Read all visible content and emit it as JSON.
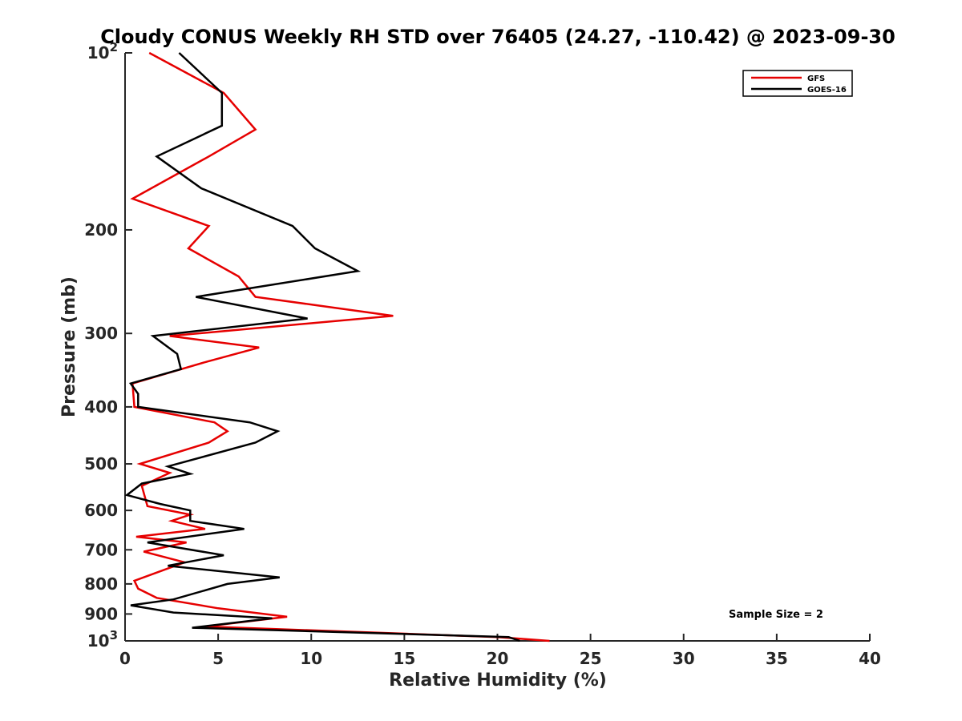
{
  "chart_data": {
    "type": "line",
    "title": "Cloudy CONUS Weekly RH STD over 76405 (24.27, -110.42) @ 2023-09-30",
    "xlabel": "Relative Humidity (%)",
    "ylabel": "Pressure (mb)",
    "xlim": [
      0,
      40
    ],
    "ylim": [
      100,
      1000
    ],
    "yscale": "log",
    "y_reversed": true,
    "x_ticks": [
      0,
      5,
      10,
      15,
      20,
      25,
      30,
      35,
      40
    ],
    "x_tick_labels": [
      "0",
      "5",
      "10",
      "15",
      "20",
      "25",
      "30",
      "35",
      "40"
    ],
    "y_ticks": [
      100,
      200,
      300,
      400,
      500,
      600,
      700,
      800,
      900,
      1000
    ],
    "y_tick_labels": [
      {
        "base": "10",
        "exp": "2"
      },
      {
        "base": "200",
        "exp": ""
      },
      {
        "base": "300",
        "exp": ""
      },
      {
        "base": "400",
        "exp": ""
      },
      {
        "base": "500",
        "exp": ""
      },
      {
        "base": "600",
        "exp": ""
      },
      {
        "base": "700",
        "exp": ""
      },
      {
        "base": "800",
        "exp": ""
      },
      {
        "base": "900",
        "exp": ""
      },
      {
        "base": "10",
        "exp": "3"
      }
    ],
    "legend_position": "top-right",
    "grid": false,
    "annotation": "Sample Size = 2",
    "series": [
      {
        "name": "GFS",
        "color": "#e60000",
        "points": [
          [
            1.3,
            100
          ],
          [
            5.3,
            117
          ],
          [
            7.0,
            135
          ],
          [
            4.5,
            150
          ],
          [
            0.4,
            177
          ],
          [
            4.5,
            197
          ],
          [
            3.4,
            215
          ],
          [
            6.1,
            240
          ],
          [
            7.0,
            260
          ],
          [
            14.4,
            280
          ],
          [
            2.4,
            303
          ],
          [
            7.2,
            317
          ],
          [
            4.4,
            335
          ],
          [
            0.4,
            365
          ],
          [
            0.5,
            400
          ],
          [
            4.8,
            425
          ],
          [
            5.5,
            440
          ],
          [
            4.5,
            460
          ],
          [
            0.8,
            500
          ],
          [
            2.4,
            518
          ],
          [
            0.9,
            545
          ],
          [
            1.2,
            590
          ],
          [
            3.5,
            610
          ],
          [
            2.5,
            625
          ],
          [
            4.3,
            645
          ],
          [
            0.6,
            665
          ],
          [
            3.3,
            680
          ],
          [
            1.0,
            705
          ],
          [
            3.2,
            735
          ],
          [
            0.5,
            790
          ],
          [
            0.7,
            815
          ],
          [
            1.7,
            845
          ],
          [
            5.0,
            880
          ],
          [
            8.7,
            910
          ],
          [
            4.3,
            945
          ],
          [
            20.0,
            985
          ],
          [
            22.8,
            1000
          ]
        ]
      },
      {
        "name": "GOES-16",
        "color": "#000000",
        "points": [
          [
            2.9,
            100
          ],
          [
            5.2,
            117
          ],
          [
            5.2,
            133
          ],
          [
            1.7,
            150
          ],
          [
            4.1,
            170
          ],
          [
            9.0,
            197
          ],
          [
            10.2,
            215
          ],
          [
            12.5,
            235
          ],
          [
            3.8,
            260
          ],
          [
            9.8,
            283
          ],
          [
            1.5,
            303
          ],
          [
            2.8,
            325
          ],
          [
            3.0,
            345
          ],
          [
            0.3,
            365
          ],
          [
            0.7,
            380
          ],
          [
            0.7,
            400
          ],
          [
            6.7,
            425
          ],
          [
            8.2,
            440
          ],
          [
            7.0,
            460
          ],
          [
            2.3,
            505
          ],
          [
            3.5,
            520
          ],
          [
            0.9,
            540
          ],
          [
            0.1,
            565
          ],
          [
            1.9,
            585
          ],
          [
            3.5,
            600
          ],
          [
            3.5,
            625
          ],
          [
            6.4,
            645
          ],
          [
            1.2,
            680
          ],
          [
            5.3,
            715
          ],
          [
            2.3,
            745
          ],
          [
            8.3,
            780
          ],
          [
            5.5,
            800
          ],
          [
            2.6,
            850
          ],
          [
            0.3,
            870
          ],
          [
            2.6,
            895
          ],
          [
            7.9,
            915
          ],
          [
            3.6,
            950
          ],
          [
            20.6,
            985
          ],
          [
            21.2,
            1000
          ]
        ]
      }
    ]
  }
}
